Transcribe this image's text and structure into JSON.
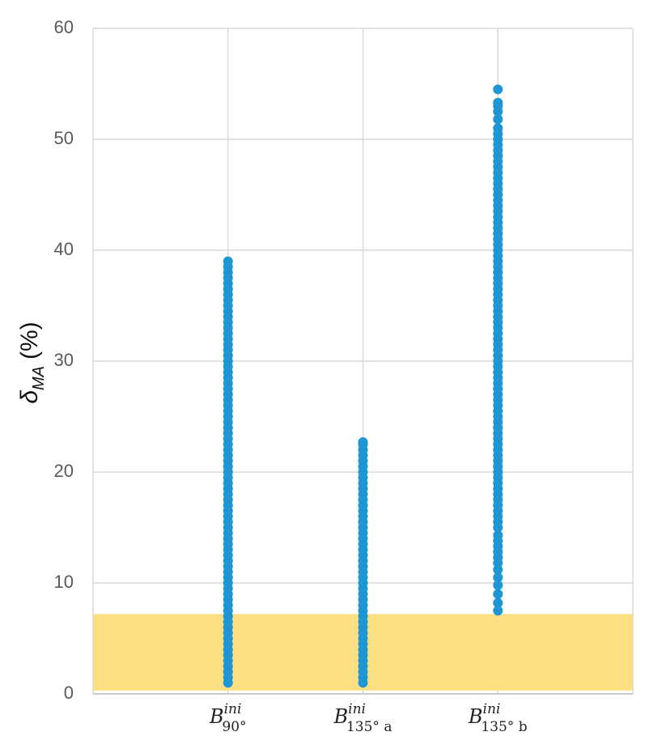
{
  "chart_data": {
    "type": "strip",
    "y_label": {
      "symbol": "δ",
      "sub": "MA",
      "unit": "(%)"
    },
    "categories": [
      {
        "base": "B",
        "sup": "ini",
        "sub": "90°"
      },
      {
        "base": "B",
        "sup": "ini",
        "sub": "135° a"
      },
      {
        "base": "B",
        "sup": "ini",
        "sub": "135° b"
      }
    ],
    "color": "#1f96d4",
    "ylim": [
      0,
      60
    ],
    "yticks": [
      0,
      10,
      20,
      30,
      40,
      50,
      60
    ],
    "grid": true,
    "shaded_region": {
      "from": 0.3,
      "to": 7.2,
      "color": "#fbdf82"
    },
    "values": [
      [
        1,
        1.5,
        2,
        2.5,
        3,
        3.5,
        4,
        4.5,
        5,
        5.5,
        6,
        6.5,
        7,
        7.5,
        8,
        8.5,
        9,
        9.5,
        10,
        10.5,
        11,
        11.5,
        12,
        12.5,
        13,
        13.5,
        14,
        14.5,
        15,
        15.5,
        16,
        16.5,
        17,
        17.5,
        18,
        18.5,
        19,
        19.5,
        20,
        20.5,
        21,
        21.5,
        22,
        22.5,
        23,
        23.5,
        24,
        24.5,
        25,
        25.5,
        26,
        26.5,
        27,
        27.5,
        28,
        28.5,
        29,
        29.5,
        30,
        30.5,
        31,
        31.5,
        32,
        32.5,
        33,
        33.5,
        34,
        34.5,
        35,
        35.5,
        36,
        36.5,
        37,
        37.5,
        38,
        38.5,
        39
      ],
      [
        1,
        1.5,
        2,
        2.5,
        3,
        3.5,
        4,
        4.5,
        5,
        5.5,
        6,
        6.5,
        7,
        7.5,
        8,
        8.5,
        9,
        9.5,
        10,
        10.5,
        11,
        11.5,
        12,
        12.5,
        13,
        13.5,
        14,
        14.5,
        15,
        15.5,
        16,
        16.5,
        17,
        17.5,
        18,
        18.5,
        19,
        19.5,
        20,
        20.5,
        21,
        21.5,
        22,
        22.5,
        22.7
      ],
      [
        7.5,
        8.2,
        9,
        9.8,
        10.5,
        11.2,
        11.8,
        12.3,
        12.8,
        13.3,
        13.8,
        14.3,
        15,
        15.5,
        16,
        16.5,
        17,
        17.5,
        18,
        18.5,
        19,
        19.5,
        20,
        20.5,
        21,
        21.5,
        22,
        22.5,
        23,
        23.5,
        24,
        24.5,
        25,
        25.5,
        26,
        26.5,
        27,
        27.5,
        28,
        28.5,
        29,
        29.5,
        30,
        30.5,
        31,
        31.5,
        32,
        32.5,
        33,
        33.5,
        34,
        34.5,
        35,
        35.5,
        36,
        36.5,
        37,
        37.5,
        38,
        38.5,
        39,
        39.5,
        40,
        40.5,
        41,
        41.5,
        42,
        42.5,
        43,
        43.5,
        44,
        44.5,
        45,
        45.5,
        46,
        46.5,
        47,
        47.5,
        48,
        48.5,
        49,
        49.5,
        50,
        50.5,
        51,
        51.8,
        52.5,
        53,
        53.3,
        54.5
      ]
    ]
  }
}
